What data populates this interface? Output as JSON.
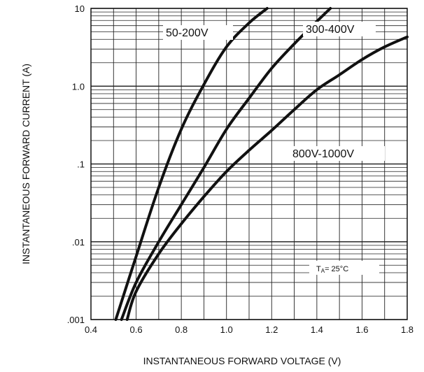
{
  "chart_data": {
    "type": "line",
    "title": "",
    "xlabel": "INSTANTANEOUS FORWARD VOLTAGE (V)",
    "ylabel": "INSTANTANEOUS FORWARD CURRENT (A)",
    "xlim": [
      0.4,
      1.8
    ],
    "ylim": [
      0.001,
      10
    ],
    "yscale": "log",
    "grid": true,
    "x_ticks": [
      "0.4",
      "0.6",
      "0.8",
      "1.0",
      "1.2",
      "1.4",
      "1.6",
      "1.8"
    ],
    "y_ticks": [
      ".001",
      ".01",
      ".1",
      "1.0",
      "10"
    ],
    "annotation": {
      "prefix": "T",
      "sub": "A",
      "suffix": "= 25°C"
    },
    "series": [
      {
        "name": "50-200V",
        "x": [
          0.51,
          0.6,
          0.7,
          0.8,
          0.9,
          1.0,
          1.1,
          1.18
        ],
        "y": [
          0.001,
          0.0065,
          0.05,
          0.28,
          1.05,
          3.2,
          6.5,
          10
        ]
      },
      {
        "name": "300-400V",
        "x": [
          0.535,
          0.6,
          0.7,
          0.8,
          0.9,
          1.0,
          1.1,
          1.2,
          1.3,
          1.4,
          1.46
        ],
        "y": [
          0.001,
          0.003,
          0.01,
          0.03,
          0.09,
          0.28,
          0.7,
          1.7,
          3.5,
          6.8,
          10
        ]
      },
      {
        "name": "800V-1000V",
        "x": [
          0.56,
          0.6,
          0.7,
          0.8,
          0.9,
          1.0,
          1.1,
          1.2,
          1.3,
          1.4,
          1.5,
          1.6,
          1.7,
          1.8
        ],
        "y": [
          0.001,
          0.0023,
          0.007,
          0.017,
          0.038,
          0.08,
          0.15,
          0.27,
          0.5,
          0.9,
          1.4,
          2.2,
          3.2,
          4.3
        ]
      }
    ]
  }
}
